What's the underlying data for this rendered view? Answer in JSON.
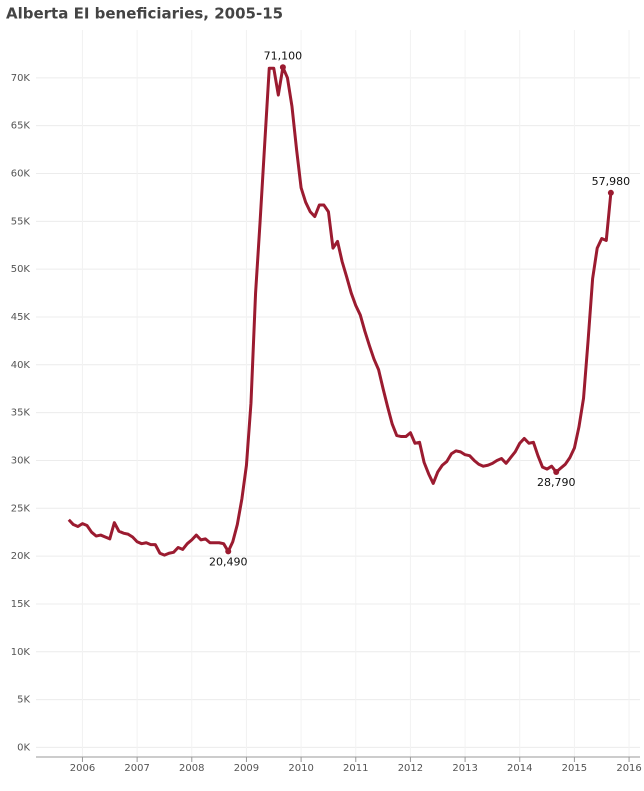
{
  "chart_data": {
    "type": "line",
    "title": "Alberta EI beneficiaries, 2005-15",
    "x": [
      2005.75,
      2005.833,
      2005.917,
      2006,
      2006.083,
      2006.167,
      2006.25,
      2006.333,
      2006.417,
      2006.5,
      2006.583,
      2006.667,
      2006.75,
      2006.833,
      2006.917,
      2007,
      2007.083,
      2007.167,
      2007.25,
      2007.333,
      2007.417,
      2007.5,
      2007.583,
      2007.667,
      2007.75,
      2007.833,
      2007.917,
      2008,
      2008.083,
      2008.167,
      2008.25,
      2008.333,
      2008.417,
      2008.5,
      2008.583,
      2008.667,
      2008.75,
      2008.833,
      2008.917,
      2009,
      2009.083,
      2009.167,
      2009.25,
      2009.333,
      2009.417,
      2009.5,
      2009.583,
      2009.667,
      2009.75,
      2009.833,
      2009.917,
      2010,
      2010.083,
      2010.167,
      2010.25,
      2010.333,
      2010.417,
      2010.5,
      2010.583,
      2010.667,
      2010.75,
      2010.833,
      2010.917,
      2011,
      2011.083,
      2011.167,
      2011.25,
      2011.333,
      2011.417,
      2011.5,
      2011.583,
      2011.667,
      2011.75,
      2011.833,
      2011.917,
      2012,
      2012.083,
      2012.167,
      2012.25,
      2012.333,
      2012.417,
      2012.5,
      2012.583,
      2012.667,
      2012.75,
      2012.833,
      2012.917,
      2013,
      2013.083,
      2013.167,
      2013.25,
      2013.333,
      2013.417,
      2013.5,
      2013.583,
      2013.667,
      2013.75,
      2013.833,
      2013.917,
      2014,
      2014.083,
      2014.167,
      2014.25,
      2014.333,
      2014.417,
      2014.5,
      2014.583,
      2014.667,
      2014.75,
      2014.833,
      2014.917,
      2015,
      2015.083,
      2015.167,
      2015.25,
      2015.333,
      2015.417,
      2015.5,
      2015.583,
      2015.667
    ],
    "values": [
      23800,
      23300,
      23100,
      23400,
      23200,
      22500,
      22100,
      22200,
      22000,
      21800,
      23500,
      22600,
      22400,
      22300,
      22000,
      21500,
      21300,
      21400,
      21200,
      21200,
      20300,
      20100,
      20300,
      20400,
      20900,
      20700,
      21300,
      21700,
      22200,
      21700,
      21800,
      21400,
      21400,
      21400,
      21300,
      20490,
      21500,
      23300,
      26000,
      29500,
      36000,
      47500,
      55000,
      63000,
      71000,
      71000,
      68200,
      71100,
      70000,
      67000,
      62500,
      58500,
      57000,
      56000,
      55500,
      56700,
      56700,
      56000,
      52200,
      52900,
      50800,
      49200,
      47500,
      46200,
      45200,
      43500,
      42000,
      40600,
      39500,
      37500,
      35600,
      33800,
      32600,
      32500,
      32500,
      32900,
      31800,
      31900,
      29800,
      28600,
      27600,
      28800,
      29500,
      29900,
      30700,
      31000,
      30900,
      30600,
      30500,
      30000,
      29600,
      29400,
      29500,
      29700,
      30000,
      30200,
      29700,
      30300,
      30900,
      31800,
      32300,
      31800,
      31900,
      30500,
      29300,
      29100,
      29400,
      28790,
      29200,
      29600,
      30300,
      31300,
      33500,
      36500,
      42500,
      49000,
      52200,
      53200,
      53000,
      57980
    ],
    "value_labels": [
      null,
      null,
      null,
      null,
      null,
      null,
      null,
      null,
      null,
      null,
      null,
      null,
      null,
      null,
      null,
      null,
      null,
      null,
      null,
      null,
      null,
      null,
      null,
      null,
      null,
      null,
      null,
      null,
      null,
      null,
      null,
      null,
      null,
      null,
      null,
      "20,490",
      null,
      null,
      null,
      null,
      null,
      null,
      null,
      null,
      null,
      null,
      null,
      "71,100",
      null,
      null,
      null,
      null,
      null,
      null,
      null,
      null,
      null,
      null,
      null,
      null,
      null,
      null,
      null,
      null,
      null,
      null,
      null,
      null,
      null,
      null,
      null,
      null,
      null,
      null,
      null,
      null,
      null,
      null,
      null,
      null,
      null,
      null,
      null,
      null,
      null,
      null,
      null,
      null,
      null,
      null,
      null,
      null,
      null,
      null,
      null,
      null,
      null,
      null,
      null,
      null,
      null,
      null,
      null,
      null,
      null,
      null,
      null,
      "28,790",
      null,
      null,
      null,
      null,
      null,
      null,
      null,
      null,
      null,
      null,
      null,
      "57,980"
    ],
    "color": "#9b1b30",
    "xlim": [
      2005.15,
      2016.2
    ],
    "xticks": [
      2006,
      2007,
      2008,
      2009,
      2010,
      2011,
      2012,
      2013,
      2014,
      2015,
      2016
    ],
    "ylim": [
      -1000,
      75000
    ],
    "yticks": [
      {
        "value": 0,
        "label": "0K"
      },
      {
        "value": 5000,
        "label": "5K"
      },
      {
        "value": 10000,
        "label": "10K"
      },
      {
        "value": 15000,
        "label": "15K"
      },
      {
        "value": 20000,
        "label": "20K"
      },
      {
        "value": 25000,
        "label": "25K"
      },
      {
        "value": 30000,
        "label": "30K"
      },
      {
        "value": 35000,
        "label": "35K"
      },
      {
        "value": 40000,
        "label": "40K"
      },
      {
        "value": 45000,
        "label": "45K"
      },
      {
        "value": 50000,
        "label": "50K"
      },
      {
        "value": 55000,
        "label": "55K"
      },
      {
        "value": 60000,
        "label": "60K"
      },
      {
        "value": 65000,
        "label": "65K"
      },
      {
        "value": 70000,
        "label": "70K"
      }
    ],
    "grid": true
  }
}
